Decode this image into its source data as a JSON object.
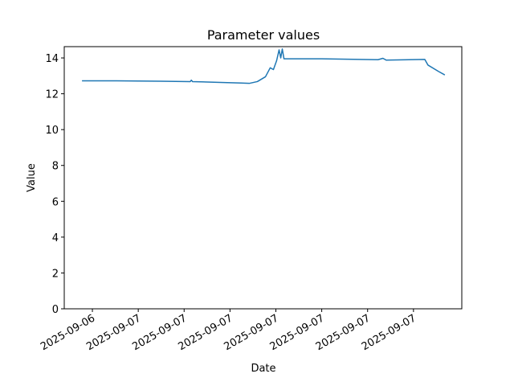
{
  "chart_data": {
    "type": "line",
    "title": "Parameter values",
    "x_label": "Date",
    "y_label": "Value",
    "x": [
      -3.68,
      -1.42,
      1.47,
      3.4,
      3.47,
      3.55,
      5.16,
      6.74,
      7.26,
      7.79,
      8.32,
      8.63,
      8.84,
      9.05,
      9.21,
      9.32,
      9.42,
      9.53,
      12.0,
      15.68,
      16.0,
      16.21,
      18.74,
      18.95,
      19.63,
      20.05
    ],
    "series": [
      {
        "name": "Value",
        "color": "#1f77b4",
        "values": [
          12.72,
          12.72,
          12.7,
          12.68,
          12.76,
          12.68,
          12.64,
          12.6,
          12.58,
          12.68,
          12.95,
          13.45,
          13.35,
          13.85,
          14.45,
          14.0,
          14.5,
          13.95,
          13.95,
          13.9,
          13.98,
          13.88,
          13.92,
          13.6,
          13.25,
          13.05
        ]
      }
    ],
    "xlim": [
      -4.84,
      21.16
    ],
    "xticks": [
      {
        "value": -3,
        "label": "2025-09-06"
      },
      {
        "value": 0,
        "label": "2025-09-07"
      },
      {
        "value": 3,
        "label": "2025-09-07"
      },
      {
        "value": 6,
        "label": "2025-09-07"
      },
      {
        "value": 9,
        "label": "2025-09-07"
      },
      {
        "value": 12,
        "label": "2025-09-07"
      },
      {
        "value": 15,
        "label": "2025-09-07"
      },
      {
        "value": 18,
        "label": "2025-09-07"
      }
    ],
    "ylim": [
      0,
      14.63
    ],
    "yticks": [
      0,
      2,
      4,
      6,
      8,
      10,
      12,
      14
    ]
  }
}
